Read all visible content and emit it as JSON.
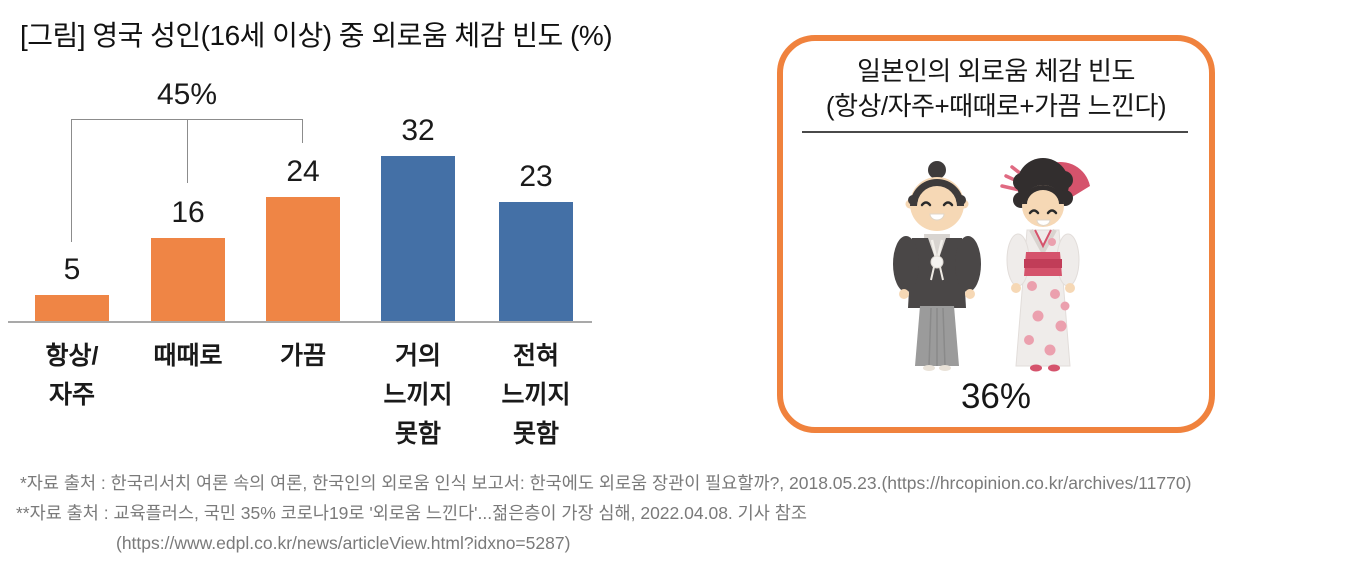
{
  "chart_data": {
    "type": "bar",
    "title": "[그림] 영국 성인(16세 이상) 중 외로움 체감 빈도 (%)",
    "unit": "%",
    "categories": [
      "항상/자주",
      "때때로",
      "가끔",
      "거의 느끼지 못함",
      "전혀 느끼지 못함"
    ],
    "category_label_lines": [
      [
        "항상/",
        "자주"
      ],
      [
        "때때로"
      ],
      [
        "가끔"
      ],
      [
        "거의",
        "느끼지",
        "못함"
      ],
      [
        "전혀",
        "느끼지",
        "못함"
      ]
    ],
    "values": [
      5,
      16,
      24,
      32,
      23
    ],
    "bar_colors": [
      "#EF8545",
      "#EF8545",
      "#EF8545",
      "#4470A6",
      "#4470A6"
    ],
    "xlabel": "",
    "ylabel": "",
    "ylim": [
      0,
      35
    ],
    "grid": false,
    "legend": false,
    "annotation": {
      "label": "45%",
      "covers": [
        "항상/자주",
        "때때로",
        "가끔"
      ]
    }
  },
  "japan_box": {
    "title_line1": "일본인의 외로움 체감 빈도",
    "title_line2": "(항상/자주+때때로+가끔 느낀다)",
    "value": "36%",
    "illustration": "japanese-couple-in-traditional-dress",
    "border_color": "#F0823D"
  },
  "footnotes": [
    "*자료 출처 : 한국리서치 여론 속의 여론, 한국인의 외로움 인식 보고서: 한국에도 외로움 장관이 필요할까?, 2018.05.23.(https://hrcopinion.co.kr/archives/11770)",
    "**자료 출처 :  교육플러스, 국민 35% 코로나19로 '외로움 느낀다'...젊은층이 가장 심해, 2022.04.08. 기사 참조",
    "(https://www.edpl.co.kr/news/articleView.html?idxno=5287)"
  ],
  "colors": {
    "bar_orange": "#EF8545",
    "bar_blue": "#4470A6",
    "box_border_orange": "#F0823D",
    "axis_gray": "#A9A9A9",
    "bracket_gray": "#8C8C8C",
    "footnote_gray": "#7A7A7A"
  }
}
